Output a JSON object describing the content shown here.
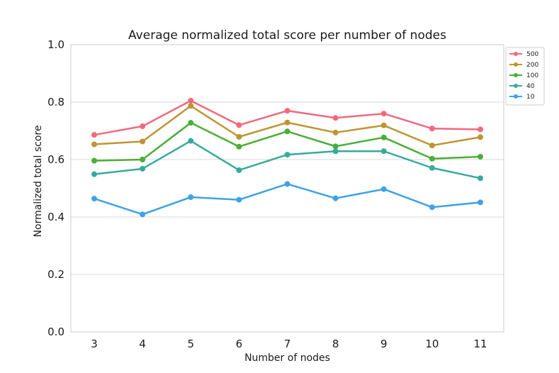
{
  "chart_data": {
    "type": "line",
    "title": "Average normalized total score per number of nodes",
    "xlabel": "Number of nodes",
    "ylabel": "Normalized total score",
    "x": [
      3,
      4,
      5,
      6,
      7,
      8,
      9,
      10,
      11
    ],
    "ylim": [
      0.0,
      1.0
    ],
    "yticks": [
      "0.0",
      "0.2",
      "0.4",
      "0.6",
      "0.8",
      "1.0"
    ],
    "grid": "horizontal",
    "legend_position": "top-right outside",
    "series": [
      {
        "name": "500",
        "color": "#f0697e",
        "values": [
          0.686,
          0.716,
          0.805,
          0.72,
          0.77,
          0.745,
          0.76,
          0.708,
          0.705
        ]
      },
      {
        "name": "200",
        "color": "#be9533",
        "values": [
          0.653,
          0.663,
          0.787,
          0.679,
          0.729,
          0.694,
          0.719,
          0.649,
          0.678
        ]
      },
      {
        "name": "100",
        "color": "#4bae38",
        "values": [
          0.596,
          0.6,
          0.728,
          0.645,
          0.698,
          0.646,
          0.677,
          0.603,
          0.61
        ]
      },
      {
        "name": "40",
        "color": "#38aa9c",
        "values": [
          0.549,
          0.568,
          0.665,
          0.563,
          0.617,
          0.629,
          0.629,
          0.571,
          0.535
        ]
      },
      {
        "name": "10",
        "color": "#3fa2e4",
        "values": [
          0.464,
          0.409,
          0.469,
          0.46,
          0.515,
          0.465,
          0.497,
          0.434,
          0.451
        ]
      }
    ]
  }
}
